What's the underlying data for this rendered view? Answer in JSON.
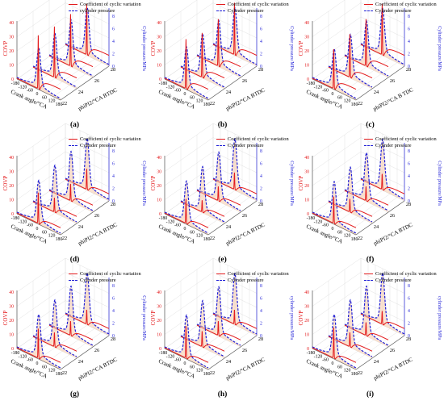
{
  "chart_data": [
    {
      "label": "(a)",
      "type": "line",
      "title": "",
      "legend": [
        "Coefficient of cyclic variation",
        "cylinder pressure"
      ],
      "zlabel_left": "COVP",
      "zlabel_right": "Cylinder pressure/MPa",
      "xlabel": "Crank angle/°CA",
      "ylabel": "phiPI2/°CA BTDC",
      "x_ticks": [
        "-180",
        "-120",
        "-60",
        "0",
        "60",
        "120",
        "180"
      ],
      "y_ticks": [
        "22",
        "24",
        "26",
        "28"
      ],
      "cov_ticks": [
        "0",
        "10",
        "20",
        "30",
        "40"
      ],
      "press_ticks": [
        "0",
        "2",
        "4",
        "6",
        "8"
      ],
      "series": [
        {
          "name": "Coefficient of cyclic variation",
          "phi": [
            22,
            24,
            26,
            28
          ],
          "peak": [
            43,
            41,
            42,
            41
          ]
        },
        {
          "name": "cylinder pressure",
          "phi": [
            22,
            24,
            26,
            28
          ],
          "peak": [
            6.6,
            7.2,
            7.5,
            7.7
          ]
        }
      ]
    },
    {
      "label": "(b)",
      "type": "line",
      "title": "",
      "legend": [
        "Coefficient of cyclic variation",
        "Cylinder pressure"
      ],
      "zlabel_left": "COVP",
      "zlabel_right": "Cylinder pressure/MPa",
      "xlabel": "Crank angle/°CA",
      "ylabel": "phiPI2/°CA BTDC",
      "x_ticks": [
        "-180",
        "-120",
        "-60",
        "0",
        "60",
        "120",
        "180"
      ],
      "y_ticks": [
        "22",
        "24",
        "26",
        "28"
      ],
      "cov_ticks": [
        "0",
        "10",
        "20",
        "30",
        "40"
      ],
      "press_ticks": [
        "0",
        "2",
        "4",
        "6",
        "8"
      ],
      "series": [
        {
          "name": "Coefficient of cyclic variation",
          "phi": [
            22,
            24,
            26,
            28
          ],
          "peak": [
            40,
            36,
            38,
            42
          ]
        },
        {
          "name": "Cylinder pressure",
          "phi": [
            22,
            24,
            26,
            28
          ],
          "peak": [
            6.8,
            7.1,
            7.4,
            7.6
          ]
        }
      ]
    },
    {
      "label": "(c)",
      "type": "line",
      "title": "",
      "legend": [
        "Coefficient of cyclic variation",
        "Cylinder pressure"
      ],
      "zlabel_left": "COVP",
      "zlabel_right": "Cylinder pressure/MPa",
      "xlabel": "Crank angle/°CA",
      "ylabel": "phiPI2/°CA B TDC",
      "x_ticks": [
        "-180",
        "-120",
        "-60",
        "0",
        "60",
        "120",
        "180"
      ],
      "y_ticks": [
        "22",
        "24",
        "26",
        "28"
      ],
      "cov_ticks": [
        "0",
        "10",
        "20",
        "30",
        "40"
      ],
      "press_ticks": [
        "0",
        "2",
        "4",
        "6",
        "8"
      ],
      "series": [
        {
          "name": "Coefficient of cyclic variation",
          "phi": [
            22,
            24,
            26,
            28
          ],
          "peak": [
            32,
            35,
            38,
            41
          ]
        },
        {
          "name": "Cylinder pressure",
          "phi": [
            22,
            24,
            26,
            28
          ],
          "peak": [
            6.5,
            7.0,
            7.3,
            7.5
          ]
        }
      ]
    },
    {
      "label": "(d)",
      "type": "line",
      "title": "",
      "legend": [
        "Coefficient of cyclic variation",
        "Cylinder pressure"
      ],
      "zlabel_left": "COVP",
      "zlabel_right": "Cylinder pressure/MPa",
      "xlabel": "Crank angle/°CA",
      "ylabel": "phiPI2/°CA BTDC",
      "x_ticks": [
        "-180",
        "-120",
        "-60",
        "0",
        "60",
        "120",
        "180"
      ],
      "y_ticks": [
        "22",
        "24",
        "26",
        "28"
      ],
      "cov_ticks": [
        "0",
        "10",
        "20",
        "30",
        "40"
      ],
      "press_ticks": [
        "0",
        "2",
        "4",
        "6",
        "8"
      ],
      "series": [
        {
          "name": "Coefficient of cyclic variation",
          "phi": [
            22,
            24,
            26,
            28
          ],
          "peak": [
            25,
            12,
            14,
            17
          ]
        },
        {
          "name": "Cylinder pressure",
          "phi": [
            22,
            24,
            26,
            28
          ],
          "peak": [
            7.0,
            7.6,
            8.0,
            8.3
          ]
        }
      ]
    },
    {
      "label": "(e)",
      "type": "line",
      "title": "",
      "legend": [
        "Coefficient of cyclic variation",
        "Cylinder pressure"
      ],
      "zlabel_left": "COVP",
      "zlabel_right": "Cylinder pressure/MPa",
      "xlabel": "Crank angle/°CA",
      "ylabel": "phiPI2/°CA BTDC",
      "x_ticks": [
        "-180",
        "-120",
        "-60",
        "0",
        "60",
        "120",
        "180"
      ],
      "y_ticks": [
        "22",
        "24",
        "26",
        "28"
      ],
      "cov_ticks": [
        "0",
        "10",
        "20",
        "30",
        "40"
      ],
      "press_ticks": [
        "0",
        "2",
        "4",
        "6",
        "8"
      ],
      "series": [
        {
          "name": "Coefficient of cyclic variation",
          "phi": [
            22,
            24,
            26,
            28
          ],
          "peak": [
            20,
            10,
            12,
            14
          ]
        },
        {
          "name": "Cylinder pressure",
          "phi": [
            22,
            24,
            26,
            28
          ],
          "peak": [
            6.9,
            7.4,
            7.9,
            8.2
          ]
        }
      ]
    },
    {
      "label": "(f)",
      "type": "line",
      "title": "",
      "legend": [
        "Coefficient of cyclic variation",
        "Cylinder pressure"
      ],
      "zlabel_left": "COVP",
      "zlabel_right": "Cylinder pressure/MPa",
      "xlabel": "Crank angle/°CA",
      "ylabel": "phiPI2/°CA BTDC",
      "x_ticks": [
        "-180",
        "-120",
        "-60",
        "0",
        "60",
        "120",
        "180"
      ],
      "y_ticks": [
        "22",
        "24",
        "26",
        "28"
      ],
      "cov_ticks": [
        "0",
        "10",
        "20",
        "30",
        "40"
      ],
      "press_ticks": [
        "0",
        "2",
        "4",
        "6",
        "8"
      ],
      "series": [
        {
          "name": "Coefficient of cyclic variation",
          "phi": [
            22,
            24,
            26,
            28
          ],
          "peak": [
            22,
            11,
            12,
            13
          ]
        },
        {
          "name": "Cylinder pressure",
          "phi": [
            22,
            24,
            26,
            28
          ],
          "peak": [
            6.8,
            7.3,
            7.8,
            8.1
          ]
        }
      ]
    },
    {
      "label": "(g)",
      "type": "line",
      "title": "",
      "legend": [
        "Coefficient of cyclic variation",
        "Cylinder pressure"
      ],
      "zlabel_left": "COVP",
      "zlabel_right": "Cylinder pressure/MPa",
      "xlabel": "Crank angle/°CA",
      "ylabel": "phiPI2/°CA BTDC",
      "x_ticks": [
        "-180",
        "-120",
        "-60",
        "0",
        "60",
        "120",
        "180"
      ],
      "y_ticks": [
        "22",
        "24",
        "26",
        "28"
      ],
      "cov_ticks": [
        "0",
        "10",
        "20",
        "30",
        "40"
      ],
      "press_ticks": [
        "0",
        "2",
        "4",
        "6",
        "8"
      ],
      "series": [
        {
          "name": "Coefficient of cyclic variation",
          "phi": [
            22,
            24,
            26,
            28
          ],
          "peak": [
            24,
            12,
            12,
            12
          ]
        },
        {
          "name": "Cylinder pressure",
          "phi": [
            22,
            24,
            26,
            28
          ],
          "peak": [
            7.1,
            7.6,
            8.0,
            8.3
          ]
        }
      ]
    },
    {
      "label": "(h)",
      "type": "line",
      "title": "",
      "legend": [
        "Coefficient of cyclic variation",
        "Cylinder pressure"
      ],
      "zlabel_left": "COVP",
      "zlabel_right": "cylinder pressure/MPa",
      "xlabel": "Crank angle/°CA",
      "ylabel": "phiPI2/°CA BTDC",
      "x_ticks": [
        "-180",
        "-120",
        "-60",
        "0",
        "60",
        "120",
        "180"
      ],
      "y_ticks": [
        "22",
        "24",
        "26",
        "28"
      ],
      "cov_ticks": [
        "0",
        "10",
        "20",
        "30",
        "40"
      ],
      "press_ticks": [
        "0",
        "2",
        "4",
        "6",
        "8"
      ],
      "series": [
        {
          "name": "Coefficient of cyclic variation",
          "phi": [
            22,
            24,
            26,
            28
          ],
          "peak": [
            26,
            13,
            12,
            12
          ]
        },
        {
          "name": "Cylinder pressure",
          "phi": [
            22,
            24,
            26,
            28
          ],
          "peak": [
            7.0,
            7.5,
            7.9,
            8.2
          ]
        }
      ]
    },
    {
      "label": "(i)",
      "type": "line",
      "title": "",
      "legend": [
        "Coefficient of cyclic variation",
        "Cylinder pressure"
      ],
      "zlabel_left": "COVP",
      "zlabel_right": "cylinder pressure/MPa",
      "xlabel": "Crank angle/°CA",
      "ylabel": "phiPI2/°CA BTDC",
      "x_ticks": [
        "-180",
        "-120",
        "-60",
        "0",
        "60",
        "120",
        "180"
      ],
      "y_ticks": [
        "22",
        "24",
        "26",
        "28"
      ],
      "cov_ticks": [
        "0",
        "10",
        "20",
        "30",
        "40"
      ],
      "press_ticks": [
        "0",
        "2",
        "4",
        "6",
        "8"
      ],
      "series": [
        {
          "name": "Coefficient of cyclic variation",
          "phi": [
            22,
            24,
            26,
            28
          ],
          "peak": [
            25,
            12,
            11,
            11
          ]
        },
        {
          "name": "Cylinder pressure",
          "phi": [
            22,
            24,
            26,
            28
          ],
          "peak": [
            7.1,
            7.6,
            8.0,
            8.3
          ]
        }
      ]
    }
  ],
  "colors": {
    "cov": "#e31a1c",
    "pressure": "#1f1fd6",
    "fill": "#f6c9a7",
    "grid": "#d9d9d9",
    "axis": "#555555"
  }
}
